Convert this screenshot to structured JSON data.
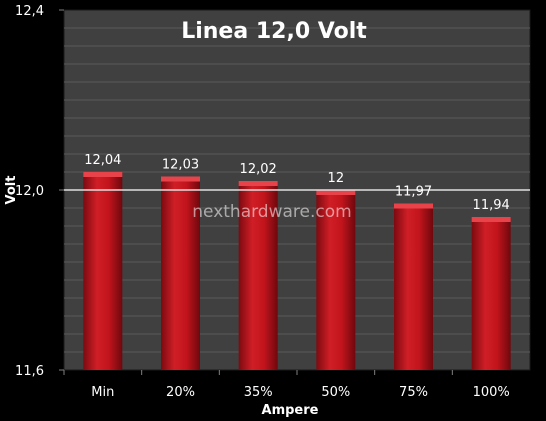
{
  "chart_data": {
    "type": "bar",
    "title": "Linea 12,0 Volt",
    "xlabel": "Ampere",
    "ylabel": "Volt",
    "categories": [
      "Min",
      "20%",
      "35%",
      "50%",
      "75%",
      "100%"
    ],
    "values": [
      12.04,
      12.03,
      12.02,
      12.0,
      11.97,
      11.94
    ],
    "data_labels": [
      "12,04",
      "12,03",
      "12,02",
      "12",
      "11,97",
      "11,94"
    ],
    "ylim": [
      11.6,
      12.4
    ],
    "yticks": [
      11.6,
      12.0,
      12.4
    ],
    "ytick_labels": [
      "11,6",
      "12,0",
      "12,4"
    ],
    "grid": true,
    "colors": {
      "plot_background": "#404040",
      "bar": "#b5121b",
      "gridline": "#5a5a5a",
      "reference_line": "#e0e0e0"
    }
  },
  "watermark": "nexthardware.com"
}
